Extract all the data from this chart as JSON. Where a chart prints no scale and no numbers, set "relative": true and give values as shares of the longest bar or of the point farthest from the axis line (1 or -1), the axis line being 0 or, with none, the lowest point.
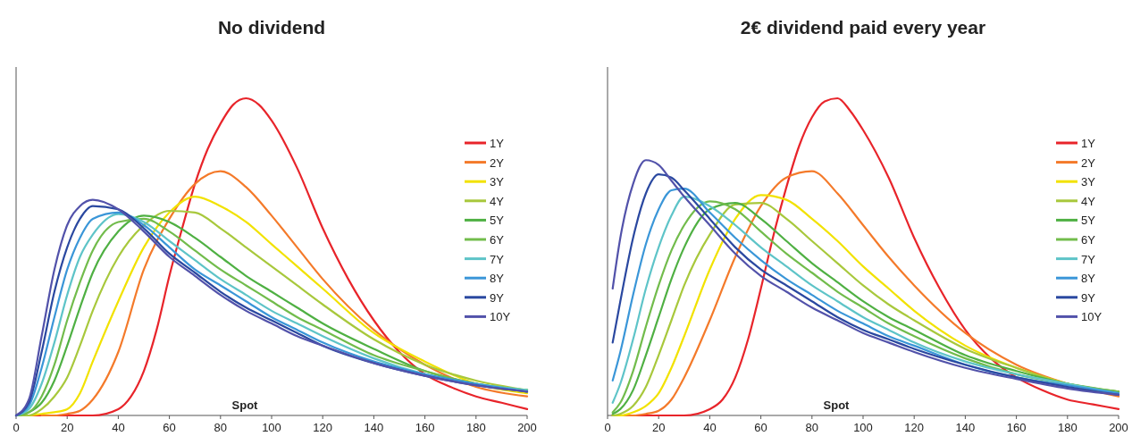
{
  "chart_data": [
    {
      "type": "line",
      "title": "No dividend",
      "xlabel": "Spot",
      "relative": true,
      "xlim": [
        0,
        200
      ],
      "xticks": [
        0,
        20,
        40,
        60,
        80,
        100,
        120,
        140,
        160,
        180,
        200
      ],
      "legend": "right",
      "grid": false,
      "marker": "none",
      "line_style": "solid",
      "x": [
        0,
        5,
        10,
        15,
        20,
        25,
        30,
        40,
        50,
        60,
        70,
        80,
        90,
        100,
        110,
        120,
        140,
        160,
        180,
        200
      ],
      "series": [
        {
          "name": "1Y",
          "color": "#e8242a",
          "x": [
            0,
            30,
            40,
            45,
            50,
            55,
            60,
            65,
            70,
            75,
            80,
            85,
            90,
            95,
            100,
            110,
            120,
            130,
            140,
            150,
            160,
            170,
            180,
            190,
            200
          ],
          "values": [
            0,
            0,
            0.02,
            0.06,
            0.14,
            0.27,
            0.44,
            0.59,
            0.73,
            0.84,
            0.92,
            0.98,
            1,
            0.98,
            0.93,
            0.78,
            0.59,
            0.43,
            0.3,
            0.2,
            0.13,
            0.09,
            0.06,
            0.04,
            0.02
          ]
        },
        {
          "name": "2Y",
          "color": "#f47a2a",
          "values": [
            null,
            null,
            0,
            0,
            0.005,
            0.015,
            0.05,
            0.2,
            0.46,
            0.62,
            0.73,
            0.77,
            0.72,
            0.63,
            0.53,
            0.43,
            0.27,
            0.16,
            0.09,
            0.06
          ]
        },
        {
          "name": "3Y",
          "color": "#f2e200",
          "values": [
            0,
            0,
            0.005,
            0.01,
            0.02,
            0.07,
            0.17,
            0.36,
            0.53,
            0.64,
            0.69,
            0.66,
            0.61,
            0.54,
            0.47,
            0.4,
            0.26,
            0.17,
            0.1,
            0.07
          ]
        },
        {
          "name": "4Y",
          "color": "#a8c83c",
          "values": [
            0,
            0,
            0.02,
            0.06,
            0.12,
            0.22,
            0.33,
            0.5,
            0.6,
            0.645,
            0.64,
            0.59,
            0.53,
            0.47,
            0.41,
            0.35,
            0.24,
            0.16,
            0.11,
            0.08
          ]
        },
        {
          "name": "5Y",
          "color": "#4fb043",
          "values": [
            0,
            0.01,
            0.04,
            0.11,
            0.22,
            0.34,
            0.45,
            0.58,
            0.63,
            0.61,
            0.56,
            0.5,
            0.44,
            0.39,
            0.34,
            0.29,
            0.21,
            0.14,
            0.1,
            0.08
          ]
        },
        {
          "name": "6Y",
          "color": "#72bc4c",
          "values": [
            0,
            0.01,
            0.06,
            0.16,
            0.3,
            0.42,
            0.52,
            0.61,
            0.62,
            0.58,
            0.52,
            0.46,
            0.41,
            0.36,
            0.31,
            0.27,
            0.19,
            0.14,
            0.1,
            0.08
          ]
        },
        {
          "name": "7Y",
          "color": "#5ec4c8",
          "values": [
            0,
            0.02,
            0.1,
            0.23,
            0.38,
            0.5,
            0.57,
            0.635,
            0.61,
            0.55,
            0.49,
            0.43,
            0.38,
            0.33,
            0.29,
            0.25,
            0.18,
            0.13,
            0.1,
            0.08
          ]
        },
        {
          "name": "8Y",
          "color": "#3a96d8",
          "values": [
            0,
            0.03,
            0.15,
            0.31,
            0.46,
            0.56,
            0.62,
            0.64,
            0.6,
            0.53,
            0.46,
            0.41,
            0.36,
            0.31,
            0.27,
            0.23,
            0.17,
            0.13,
            0.1,
            0.075
          ]
        },
        {
          "name": "9Y",
          "color": "#2a48a0",
          "values": [
            0,
            0.04,
            0.2,
            0.39,
            0.53,
            0.62,
            0.66,
            0.65,
            0.59,
            0.51,
            0.45,
            0.39,
            0.34,
            0.3,
            0.26,
            0.22,
            0.165,
            0.125,
            0.095,
            0.075
          ]
        },
        {
          "name": "10Y",
          "color": "#5252aa",
          "values": [
            0,
            0.05,
            0.25,
            0.46,
            0.6,
            0.66,
            0.68,
            0.65,
            0.58,
            0.5,
            0.44,
            0.38,
            0.33,
            0.29,
            0.25,
            0.22,
            0.165,
            0.125,
            0.095,
            0.075
          ]
        }
      ]
    },
    {
      "type": "line",
      "title": "2€ dividend paid every year",
      "xlabel": "Spot",
      "relative": true,
      "xlim": [
        0,
        200
      ],
      "xticks": [
        0,
        20,
        40,
        60,
        80,
        100,
        120,
        140,
        160,
        180,
        200
      ],
      "legend": "right",
      "grid": false,
      "marker": "none",
      "line_style": "solid",
      "x": [
        2,
        5,
        10,
        15,
        20,
        25,
        30,
        40,
        50,
        60,
        70,
        80,
        90,
        100,
        110,
        120,
        140,
        160,
        180,
        200
      ],
      "series": [
        {
          "name": "1Y",
          "color": "#e8242a",
          "x": [
            2,
            30,
            40,
            45,
            50,
            55,
            60,
            65,
            70,
            75,
            80,
            85,
            90,
            95,
            100,
            110,
            120,
            130,
            140,
            150,
            160,
            170,
            180,
            190,
            200
          ],
          "values": [
            0,
            0,
            0.02,
            0.05,
            0.12,
            0.24,
            0.4,
            0.57,
            0.72,
            0.85,
            0.94,
            0.99,
            1,
            0.96,
            0.9,
            0.75,
            0.56,
            0.4,
            0.27,
            0.18,
            0.12,
            0.08,
            0.05,
            0.035,
            0.02
          ]
        },
        {
          "name": "2Y",
          "color": "#f47a2a",
          "values": [
            0,
            0,
            0,
            0.005,
            0.015,
            0.05,
            0.12,
            0.3,
            0.5,
            0.66,
            0.75,
            0.77,
            0.7,
            0.6,
            0.5,
            0.41,
            0.26,
            0.16,
            0.1,
            0.06
          ]
        },
        {
          "name": "3Y",
          "color": "#f2e200",
          "values": [
            0,
            0,
            0.01,
            0.03,
            0.07,
            0.15,
            0.25,
            0.46,
            0.62,
            0.695,
            0.68,
            0.62,
            0.55,
            0.47,
            0.4,
            0.33,
            0.22,
            0.15,
            0.1,
            0.07
          ]
        },
        {
          "name": "4Y",
          "color": "#a8c83c",
          "values": [
            0,
            0.005,
            0.03,
            0.09,
            0.19,
            0.3,
            0.41,
            0.57,
            0.665,
            0.67,
            0.62,
            0.55,
            0.48,
            0.41,
            0.35,
            0.3,
            0.21,
            0.15,
            0.1,
            0.075
          ]
        },
        {
          "name": "5Y",
          "color": "#4fb043",
          "values": [
            0.005,
            0.02,
            0.08,
            0.19,
            0.31,
            0.43,
            0.53,
            0.65,
            0.67,
            0.62,
            0.55,
            0.48,
            0.42,
            0.36,
            0.31,
            0.27,
            0.19,
            0.14,
            0.1,
            0.075
          ]
        },
        {
          "name": "6Y",
          "color": "#72bc4c",
          "values": [
            0.01,
            0.04,
            0.14,
            0.28,
            0.41,
            0.52,
            0.6,
            0.675,
            0.65,
            0.58,
            0.51,
            0.45,
            0.39,
            0.34,
            0.29,
            0.25,
            0.18,
            0.13,
            0.1,
            0.075
          ]
        },
        {
          "name": "7Y",
          "color": "#5ec4c8",
          "values": [
            0.04,
            0.1,
            0.24,
            0.4,
            0.53,
            0.63,
            0.69,
            0.66,
            0.6,
            0.53,
            0.47,
            0.41,
            0.36,
            0.31,
            0.27,
            0.23,
            0.17,
            0.13,
            0.1,
            0.07
          ]
        },
        {
          "name": "8Y",
          "color": "#3a96d8",
          "values": [
            0.11,
            0.2,
            0.38,
            0.54,
            0.65,
            0.71,
            0.715,
            0.64,
            0.56,
            0.49,
            0.43,
            0.38,
            0.33,
            0.29,
            0.25,
            0.22,
            0.16,
            0.12,
            0.095,
            0.07
          ]
        },
        {
          "name": "9Y",
          "color": "#2a48a0",
          "values": [
            0.23,
            0.36,
            0.56,
            0.7,
            0.76,
            0.75,
            0.71,
            0.62,
            0.53,
            0.46,
            0.41,
            0.36,
            0.31,
            0.27,
            0.24,
            0.21,
            0.16,
            0.12,
            0.09,
            0.065
          ]
        },
        {
          "name": "10Y",
          "color": "#5252aa",
          "values": [
            0.4,
            0.56,
            0.73,
            0.805,
            0.79,
            0.74,
            0.69,
            0.6,
            0.51,
            0.44,
            0.39,
            0.34,
            0.3,
            0.26,
            0.23,
            0.2,
            0.15,
            0.115,
            0.085,
            0.065
          ]
        }
      ]
    }
  ]
}
